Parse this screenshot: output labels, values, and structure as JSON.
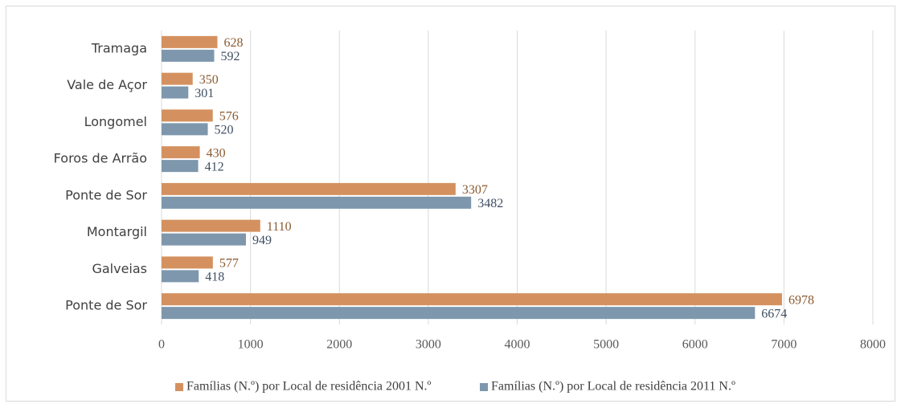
{
  "chart_data": {
    "type": "bar",
    "orientation": "horizontal",
    "categories": [
      "Tramaga",
      "Vale de Açor",
      "Longomel",
      "Foros de Arrão",
      "Ponte de Sor",
      "Montargil",
      "Galveias",
      "Ponte de Sor"
    ],
    "series": [
      {
        "name": "Famílias (N.º) por Local de residência 2001 N.º",
        "color": "#d4915f",
        "label_color": "#8a5a30",
        "values": [
          628,
          350,
          576,
          430,
          3307,
          1110,
          577,
          6978
        ]
      },
      {
        "name": "Famílias (N.º) por Local de residência 2011 N.º",
        "color": "#7e97ad",
        "label_color": "#3f4f63",
        "values": [
          592,
          301,
          520,
          412,
          3482,
          949,
          418,
          6674
        ]
      }
    ],
    "xlim": [
      0,
      8000
    ],
    "xticks": [
      0,
      1000,
      2000,
      3000,
      4000,
      5000,
      6000,
      7000,
      8000
    ],
    "grid": true,
    "legend": "bottom"
  }
}
